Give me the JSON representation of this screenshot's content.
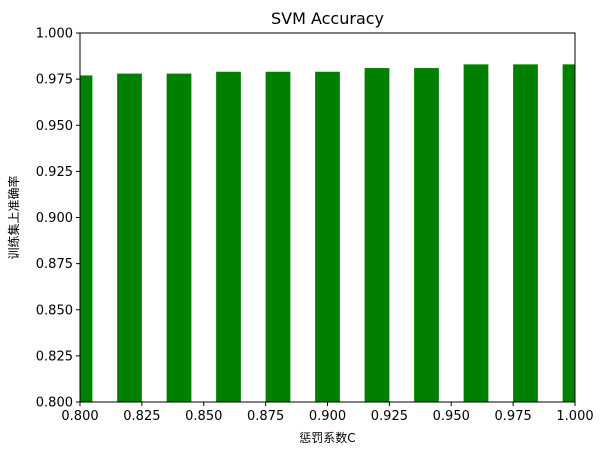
{
  "chart_data": {
    "type": "bar",
    "title": "SVM Accuracy",
    "xlabel": "惩罚系数C",
    "ylabel": "训练集上准确率",
    "x": [
      0.8,
      0.82,
      0.84,
      0.86,
      0.88,
      0.9,
      0.92,
      0.94,
      0.96,
      0.98,
      1.0
    ],
    "values": [
      0.977,
      0.978,
      0.978,
      0.979,
      0.979,
      0.979,
      0.981,
      0.981,
      0.983,
      0.983,
      0.983
    ],
    "bar_width": 0.01,
    "bar_color": "#008000",
    "xlim": [
      0.8,
      1.0
    ],
    "ylim": [
      0.8,
      1.0
    ],
    "xticks": [
      "0.800",
      "0.825",
      "0.850",
      "0.875",
      "0.900",
      "0.925",
      "0.950",
      "0.975",
      "1.000"
    ],
    "yticks": [
      "0.800",
      "0.825",
      "0.850",
      "0.875",
      "0.900",
      "0.925",
      "0.950",
      "0.975",
      "1.000"
    ],
    "grid": false,
    "legend": "none"
  }
}
